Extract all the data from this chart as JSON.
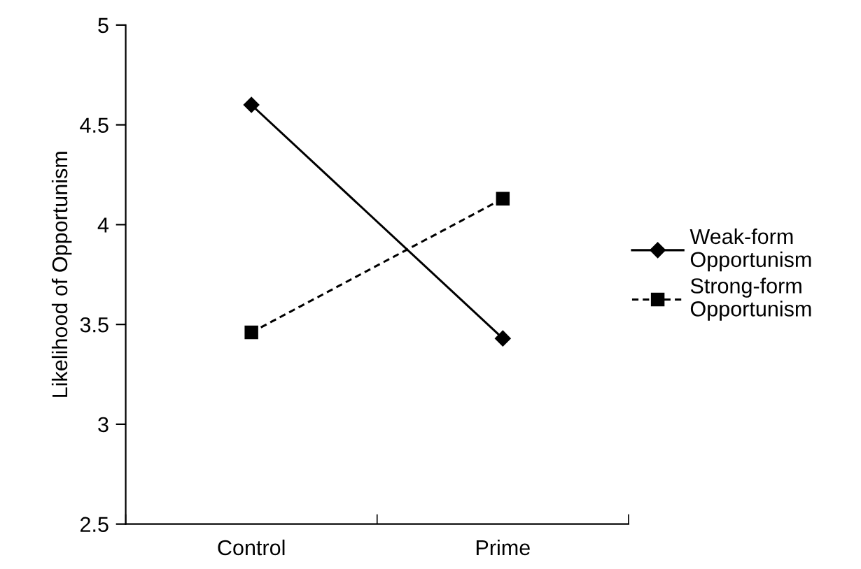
{
  "chart_data": {
    "type": "line",
    "ylabel": "Likelihood of Opportunism",
    "categories": [
      "Control",
      "Prime"
    ],
    "series": [
      {
        "name": "Weak-form Opportunism",
        "color": "#000000",
        "values": [
          4.6,
          3.43
        ],
        "marker": "diamond",
        "line_style": "solid"
      },
      {
        "name": "Strong-form Opportunism",
        "color": "#000000",
        "values": [
          3.46,
          4.13
        ],
        "marker": "square",
        "line_style": "dashed"
      }
    ],
    "ylim": [
      2.5,
      5
    ],
    "yticks": [
      2.5,
      3,
      3.5,
      4,
      4.5,
      5
    ],
    "grid": false,
    "legend": "right"
  }
}
